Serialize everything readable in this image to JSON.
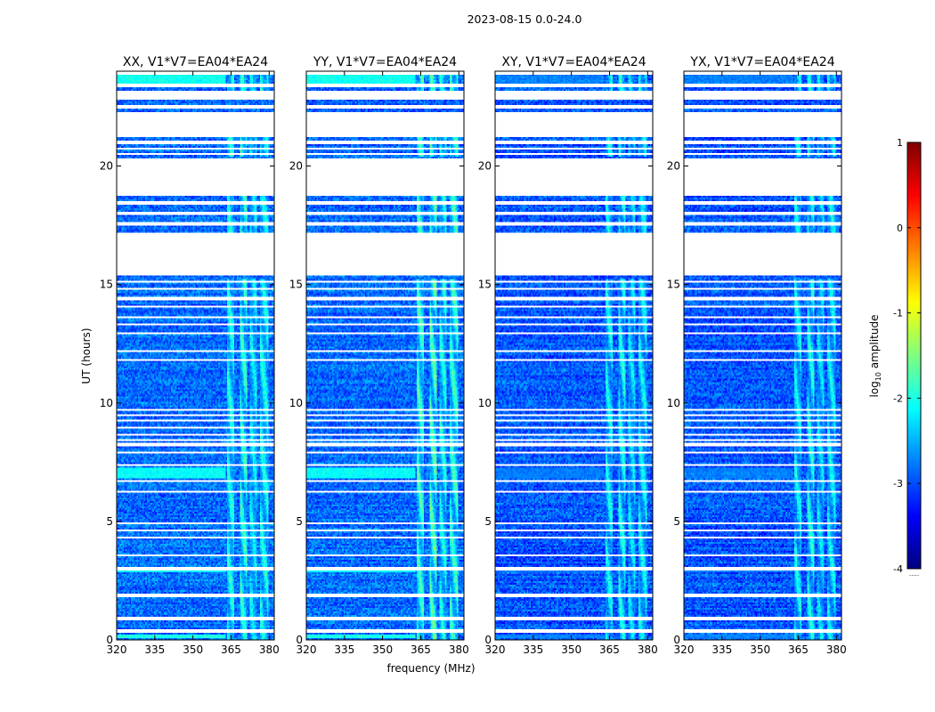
{
  "figure": {
    "suptitle": "2023-08-15 0.0-24.0"
  },
  "chart_data": {
    "type": "heatmap",
    "description_of_axes": "shared axes across four polarization panels",
    "xlabel": "frequency (MHz)",
    "ylabel": "UT (hours)",
    "xlim": [
      320,
      382
    ],
    "ylim": [
      0,
      24
    ],
    "x_ticks": [
      320,
      335,
      350,
      365,
      380
    ],
    "y_ticks": [
      0,
      5,
      10,
      15,
      20
    ],
    "panels": [
      {
        "title": "XX, V1*V7=EA04*EA24",
        "pol": "XX",
        "baseline": "V1*V7=EA04*EA24",
        "base_level": -2.85,
        "rfi_strength": 1.0,
        "bright_band_strength": 1.0
      },
      {
        "title": "YY, V1*V7=EA04*EA24",
        "pol": "YY",
        "baseline": "V1*V7=EA04*EA24",
        "base_level": -2.85,
        "rfi_strength": 1.2,
        "bright_band_strength": 1.0
      },
      {
        "title": "XY, V1*V7=EA04*EA24",
        "pol": "XY",
        "baseline": "V1*V7=EA04*EA24",
        "base_level": -2.95,
        "rfi_strength": 0.9,
        "bright_band_strength": 0.2
      },
      {
        "title": "YX, V1*V7=EA04*EA24",
        "pol": "YX",
        "baseline": "V1*V7=EA04*EA24",
        "base_level": -2.95,
        "rfi_strength": 0.9,
        "bright_band_strength": 0.2
      }
    ],
    "flagged_time_ranges_hours": [
      [
        0.3,
        0.45
      ],
      [
        0.85,
        0.95
      ],
      [
        1.8,
        1.95
      ],
      [
        2.95,
        3.1
      ],
      [
        3.5,
        3.58
      ],
      [
        4.3,
        4.38
      ],
      [
        4.55,
        4.62
      ],
      [
        4.85,
        4.92
      ],
      [
        6.2,
        6.28
      ],
      [
        6.65,
        6.75
      ],
      [
        7.35,
        7.42
      ],
      [
        7.85,
        7.95
      ],
      [
        8.2,
        8.3
      ],
      [
        8.4,
        8.48
      ],
      [
        8.6,
        8.7
      ],
      [
        8.9,
        9.0
      ],
      [
        9.2,
        9.3
      ],
      [
        9.45,
        9.55
      ],
      [
        9.7,
        9.78
      ],
      [
        11.8,
        11.88
      ],
      [
        12.15,
        12.22
      ],
      [
        12.9,
        12.98
      ],
      [
        13.3,
        13.38
      ],
      [
        13.6,
        13.68
      ],
      [
        14.0,
        14.1
      ],
      [
        14.35,
        14.45
      ],
      [
        14.75,
        14.82
      ],
      [
        15.1,
        15.17
      ],
      [
        15.4,
        17.2
      ],
      [
        17.5,
        17.6
      ],
      [
        17.95,
        18.05
      ],
      [
        18.4,
        18.55
      ],
      [
        18.75,
        20.35
      ],
      [
        20.45,
        20.55
      ],
      [
        20.7,
        20.8
      ],
      [
        20.95,
        21.05
      ],
      [
        21.2,
        22.3
      ],
      [
        22.45,
        22.55
      ],
      [
        22.8,
        23.2
      ],
      [
        23.35,
        23.45
      ],
      [
        23.6,
        23.65
      ],
      [
        23.88,
        24.0
      ]
    ],
    "rfi_channels_mhz": [
      {
        "from": 363.5,
        "to": 366.5,
        "level": -1.9
      },
      {
        "from": 368.5,
        "to": 371.5,
        "level": -1.8
      },
      {
        "from": 372.5,
        "to": 375.0,
        "level": -2.1
      },
      {
        "from": 376.5,
        "to": 379.5,
        "level": -1.95
      }
    ],
    "bright_time_bands_hours": [
      {
        "from": 0.05,
        "to": 0.2,
        "level": -2.0
      },
      {
        "from": 2.85,
        "to": 2.95,
        "level": -2.1
      },
      {
        "from": 6.8,
        "to": 7.3,
        "level": -2.1
      },
      {
        "from": 23.5,
        "to": 23.85,
        "level": -2.05
      }
    ],
    "rfi_active_hours": [
      [
        0.0,
        15.2
      ],
      [
        17.2,
        18.8
      ],
      [
        20.4,
        21.3
      ],
      [
        23.0,
        24.0
      ]
    ],
    "colorbar": {
      "label": "log10 amplitude",
      "label_base": "log",
      "label_sub": "10",
      "label_rest": " amplitude",
      "min": -4,
      "max": 1,
      "ticks": [
        -4,
        -3,
        -2,
        -1,
        0,
        1
      ],
      "colormap": "jet",
      "stops": [
        "#00007f",
        "#0000ff",
        "#007fff",
        "#00ffff",
        "#7fff7f",
        "#ffff00",
        "#ff7f00",
        "#ff0000",
        "#7f0000"
      ],
      "under_note": "....."
    }
  }
}
